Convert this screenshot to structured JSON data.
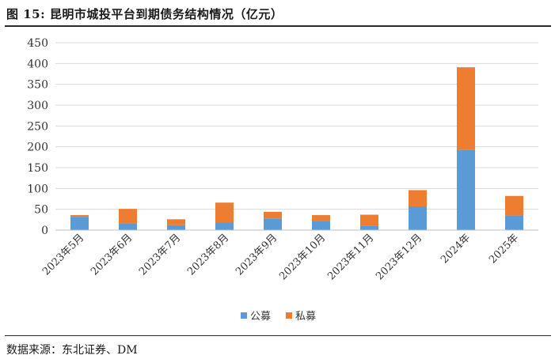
{
  "figure": {
    "title": "图 15:  昆明市城投平台到期债务结构情况（亿元）",
    "source": "数据来源：东北证券、DM"
  },
  "colors": {
    "public": "#5b9bd5",
    "private": "#ed7d31",
    "grid": "#d9d9d9",
    "axis": "#bfbfbf"
  },
  "chart_data": {
    "type": "bar",
    "stacked": true,
    "categories": [
      "2023年5月",
      "2023年6月",
      "2023年7月",
      "2023年8月",
      "2023年9月",
      "2023年10月",
      "2023年11月",
      "2023年12月",
      "2024年",
      "2025年"
    ],
    "series": [
      {
        "name": "公募",
        "color": "#5b9bd5",
        "values": [
          32,
          16,
          12,
          18,
          28,
          22,
          11,
          57,
          192,
          35
        ]
      },
      {
        "name": "私募",
        "color": "#ed7d31",
        "values": [
          4,
          35,
          14,
          48,
          16,
          14,
          26,
          39,
          199,
          47
        ]
      }
    ],
    "ylim": [
      0,
      450
    ],
    "yticks": [
      0,
      50,
      100,
      150,
      200,
      250,
      300,
      350,
      400,
      450
    ],
    "grid": true,
    "legend": "bottom-center"
  }
}
